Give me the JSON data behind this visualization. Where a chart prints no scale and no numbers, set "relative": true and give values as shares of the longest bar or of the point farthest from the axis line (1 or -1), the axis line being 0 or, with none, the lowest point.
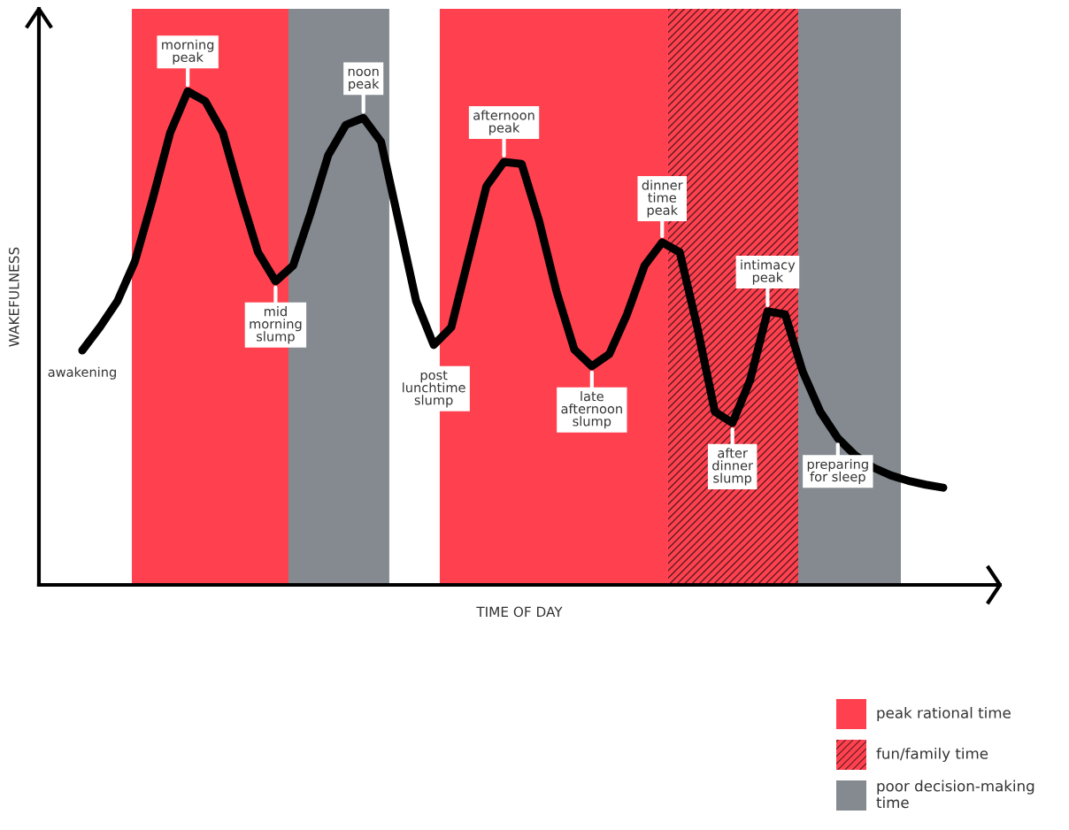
{
  "chart_data": {
    "type": "line",
    "relative": true,
    "xlabel": "TIME OF DAY",
    "ylabel": "WAKEFULNESS",
    "categories": [
      null,
      null,
      null,
      null,
      null,
      null,
      null,
      null,
      null,
      null,
      null,
      null,
      null,
      null,
      null,
      null,
      null,
      null,
      null,
      null,
      null,
      null,
      null,
      null,
      null,
      null,
      null,
      null,
      null,
      null,
      null,
      null,
      null,
      null,
      null,
      null,
      null,
      null,
      null,
      null,
      null,
      null,
      null,
      null,
      null,
      null,
      null,
      null,
      null,
      null
    ],
    "series": [
      {
        "color": "#000000",
        "values": [
          0.475,
          0.522,
          0.575,
          0.656,
          0.781,
          0.916,
          1,
          0.98,
          0.916,
          0.79,
          0.674,
          0.615,
          0.647,
          0.754,
          0.871,
          0.932,
          0.946,
          0.898,
          0.737,
          0.575,
          0.486,
          0.522,
          0.665,
          0.808,
          0.857,
          0.853,
          0.737,
          0.593,
          0.477,
          0.443,
          0.468,
          0.548,
          0.647,
          0.694,
          0.674,
          0.522,
          0.351,
          0.328,
          0.414,
          0.554,
          0.548,
          0.432,
          0.351,
          0.297,
          0.262,
          0.238,
          0.222,
          0.211,
          0.203,
          0.197
        ]
      }
    ],
    "annotations": [
      {
        "text": "awakening",
        "y": 0.475
      },
      {
        "text": "morning\npeak",
        "y": 1
      },
      {
        "text": "mid\nmorning\nslump",
        "y": 0.615
      },
      {
        "text": "noon\npeak",
        "y": 0.946
      },
      {
        "text": "post\nlunchtime\nslump",
        "y": 0.486
      },
      {
        "text": "afternoon\npeak",
        "y": 0.857
      },
      {
        "text": "late\nafternoon\nslump",
        "y": 0.443
      },
      {
        "text": "dinner\ntime\npeak",
        "y": 0.694
      },
      {
        "text": "after\ndinner\nslump",
        "y": 0.328
      },
      {
        "text": "intimacy\npeak",
        "y": 0.554
      },
      {
        "text": "preparing\nfor sleep",
        "y": 0.297
      },
      "peak rational time",
      "fun/family time",
      "poor decision-making time"
    ]
  }
}
